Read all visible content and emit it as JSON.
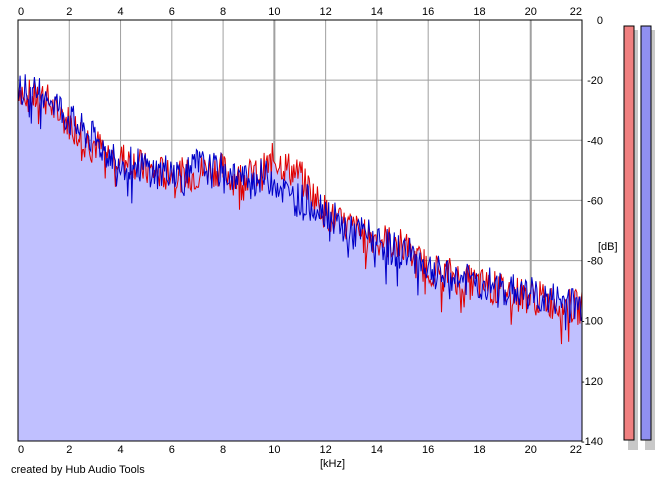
{
  "footer": {
    "credit": "created by Hub Audio Tools"
  },
  "colors": {
    "fill": "#c0c0ff",
    "left_channel": "#e00000",
    "right_channel": "#0000c8",
    "grid": "#a0a0a0",
    "meter_left": "#f08080",
    "meter_right": "#9090f0"
  },
  "chart_data": {
    "type": "line",
    "xlabel": "[kHz]",
    "ylabel": "[dB]",
    "xlim": [
      0,
      22
    ],
    "ylim": [
      -140,
      0
    ],
    "x_ticks": [
      0,
      2,
      4,
      6,
      8,
      10,
      12,
      14,
      16,
      18,
      20,
      22
    ],
    "y_ticks": [
      0,
      -20,
      -40,
      -60,
      -80,
      -100,
      -120,
      -140
    ],
    "x_tick_labels": [
      "0",
      "2",
      "4",
      "6",
      "8",
      "10",
      "12",
      "14",
      "16",
      "18",
      "20",
      "22"
    ],
    "y_tick_labels": [
      "0",
      "-20",
      "-40",
      "-60",
      "-80",
      "-100",
      "-120",
      "-140"
    ],
    "grid": true,
    "series": [
      {
        "channel": "left",
        "color": "#e00000",
        "x": [
          0,
          0.5,
          1,
          1.5,
          2,
          2.5,
          3,
          3.5,
          4,
          4.5,
          5,
          5.5,
          6,
          6.5,
          7,
          7.5,
          8,
          8.5,
          9,
          9.5,
          10,
          10.5,
          11,
          11.5,
          12,
          12.5,
          13,
          13.5,
          14,
          14.5,
          15,
          15.5,
          16,
          16.5,
          17,
          17.5,
          18,
          18.5,
          19,
          19.5,
          20,
          20.5,
          21,
          21.5,
          22
        ],
        "y": [
          -22,
          -26,
          -25,
          -31,
          -34,
          -38,
          -41,
          -45,
          -46,
          -47,
          -50,
          -51,
          -50,
          -52,
          -51,
          -49,
          -50,
          -53,
          -52,
          -51,
          -46,
          -49,
          -52,
          -58,
          -64,
          -68,
          -69,
          -72,
          -72,
          -74,
          -75,
          -80,
          -82,
          -84,
          -85,
          -87,
          -88,
          -89,
          -90,
          -91,
          -92,
          -93,
          -94,
          -95,
          -96
        ]
      },
      {
        "channel": "right",
        "color": "#0000c8",
        "x": [
          0,
          0.5,
          1,
          1.5,
          2,
          2.5,
          3,
          3.5,
          4,
          4.5,
          5,
          5.5,
          6,
          6.5,
          7,
          7.5,
          8,
          8.5,
          9,
          9.5,
          10,
          10.5,
          11,
          11.5,
          12,
          12.5,
          13,
          13.5,
          14,
          14.5,
          15,
          15.5,
          16,
          16.5,
          17,
          17.5,
          18,
          18.5,
          19,
          19.5,
          20,
          20.5,
          21,
          21.5,
          22
        ],
        "y": [
          -21,
          -25,
          -23,
          -28,
          -33,
          -37,
          -40,
          -44,
          -47,
          -48,
          -49,
          -51,
          -49,
          -53,
          -48,
          -50,
          -50,
          -52,
          -54,
          -52,
          -53,
          -58,
          -60,
          -61,
          -63,
          -68,
          -71,
          -71,
          -73,
          -76,
          -77,
          -79,
          -82,
          -85,
          -86,
          -86,
          -88,
          -88,
          -90,
          -90,
          -91,
          -93,
          -93,
          -94,
          -95
        ]
      }
    ],
    "fill_under": true
  }
}
